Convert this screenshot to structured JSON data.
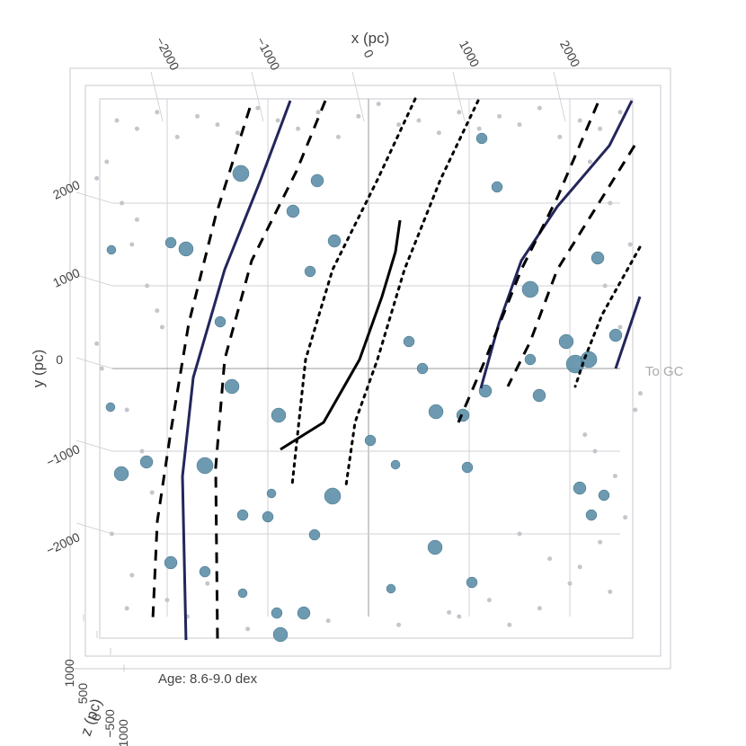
{
  "chart_data": {
    "type": "scatter",
    "x_label": "x (pc)",
    "y_label": "y (pc)",
    "z_label": "z (pc)",
    "annotations": [
      {
        "text": "Age: 8.6-9.0 dex"
      },
      {
        "text": "To GC"
      }
    ],
    "xlim": [
      -2800,
      2800
    ],
    "ylim": [
      -3300,
      3300
    ],
    "zlim": [
      -1200,
      1200
    ],
    "xticks": [
      {
        "value": -2000,
        "label": "−2000"
      },
      {
        "value": -1000,
        "label": "−1000"
      },
      0,
      1000,
      2000
    ],
    "yticks": [
      {
        "value": -2000,
        "label": "−2000"
      },
      {
        "value": -1000,
        "label": "−1000"
      },
      0,
      1000,
      2000
    ],
    "zticks": [
      1000,
      500,
      0,
      {
        "value": -500,
        "label": "−500"
      },
      {
        "value": -1000,
        "label": "−1000"
      }
    ],
    "grid": true,
    "series": [
      {
        "mode": "markers",
        "color": "#c3c6cb",
        "size": 2.5,
        "x": [
          -2500,
          -2300,
          -2100,
          -1900,
          -1700,
          -1500,
          -1300,
          -1100,
          -900,
          -700,
          -500,
          -300,
          -100,
          100,
          300,
          500,
          700,
          900,
          1100,
          1300,
          1500,
          1700,
          1900,
          2100,
          2300,
          2500,
          -2600,
          -2450,
          -2350,
          -2200,
          -2050,
          -2650,
          -2400,
          -2250,
          -2150,
          -2550,
          -2350,
          -2700,
          -2300,
          -2100,
          2200,
          2400,
          2600,
          2350,
          2500,
          2650,
          2250,
          2450,
          2150,
          2550,
          1500,
          1800,
          2000,
          1200,
          1700,
          2100,
          2400,
          900,
          1400,
          2300,
          -2000,
          -1800,
          -1600,
          -2400,
          -1200,
          -400,
          300,
          800,
          -2700,
          2700
        ],
        "y": [
          3000,
          2900,
          3100,
          2800,
          3050,
          2950,
          2850,
          3150,
          3000,
          2900,
          3100,
          2800,
          3050,
          3200,
          2950,
          3000,
          2850,
          3100,
          2900,
          3050,
          2950,
          3150,
          2800,
          3000,
          2900,
          3100,
          2500,
          2000,
          1500,
          1000,
          500,
          0,
          -500,
          -1000,
          -1500,
          -2000,
          -2500,
          2300,
          1800,
          700,
          2500,
          2000,
          1500,
          1000,
          500,
          -500,
          -1000,
          -1300,
          -800,
          -1800,
          -2000,
          -2300,
          -2600,
          -2800,
          -2900,
          -2400,
          -2700,
          -3000,
          -3100,
          -2100,
          -2800,
          -3000,
          -2600,
          -2900,
          -3150,
          -3050,
          -3100,
          -2950,
          300,
          -300
        ]
      },
      {
        "mode": "markers",
        "color": "#5d8fa9",
        "opacity": 0.9,
        "x": [
          -1268,
          -509,
          -2554,
          -1964,
          -1813,
          -750,
          -339,
          -580,
          -1473,
          -893,
          -1357,
          402,
          536,
          670,
          938,
          982,
          1161,
          1277,
          1125,
          1607,
          1964,
          2054,
          2188,
          2277,
          2455,
          2098,
          2214,
          2339,
          1607,
          1696,
          -2455,
          -2205,
          -1964,
          -1625,
          -1625,
          -1250,
          -1000,
          -964,
          -357,
          -536,
          -643,
          -911,
          -875,
          661,
          1027,
          223,
          18,
          268,
          -2563,
          -1250
        ],
        "y": [
          2359,
          2272,
          1435,
          1522,
          1446,
          1902,
          1543,
          1174,
          565,
          -565,
          -217,
          326,
          0,
          -522,
          -565,
          -1196,
          -272,
          2196,
          2783,
          957,
          326,
          54,
          109,
          1337,
          402,
          -1446,
          -1772,
          -1533,
          109,
          -326,
          -1272,
          -1130,
          -2348,
          -1174,
          -2457,
          -1772,
          -1793,
          -1511,
          -1543,
          -2011,
          -2957,
          -2957,
          -3217,
          -2163,
          -2587,
          -2663,
          -870,
          -1163,
          -467,
          -2717
        ],
        "sizes": [
          9,
          7,
          5,
          6,
          8,
          7,
          7,
          6,
          6,
          8,
          8,
          6,
          6,
          8,
          7,
          6,
          7,
          6,
          6,
          9,
          8,
          10,
          9,
          7,
          7,
          7,
          6,
          6,
          6,
          7,
          8,
          7,
          7,
          9,
          6,
          6,
          6,
          5,
          9,
          6,
          7,
          6,
          8,
          8,
          6,
          5,
          6,
          5,
          5,
          5
        ]
      },
      {
        "mode": "lines",
        "color": "#23255a",
        "dash": "solid",
        "width": 3,
        "x": [
          -777,
          -1071,
          -1429,
          -1741,
          -1848,
          -1813
        ],
        "y": [
          3239,
          2283,
          1196,
          -109,
          -1304,
          -3283
        ]
      },
      {
        "mode": "lines",
        "color": "#000000",
        "dash": "dash",
        "width": 3,
        "x": [
          -1179,
          -1518,
          -1786,
          -1964,
          -2098,
          -2143
        ],
        "y": [
          3152,
          1848,
          543,
          -761,
          -1848,
          -3043
        ]
      },
      {
        "mode": "lines",
        "color": "#000000",
        "dash": "dash",
        "width": 3,
        "x": [
          -429,
          -714,
          -1161,
          -1429,
          -1518,
          -1500
        ],
        "y": [
          3239,
          2391,
          1304,
          109,
          -1196,
          -3283
        ]
      },
      {
        "mode": "lines",
        "color": "#000000",
        "dash": "dot",
        "width": 3,
        "x": [
          464,
          89,
          -357,
          -625,
          -759
        ],
        "y": [
          3261,
          2283,
          1196,
          109,
          -1413
        ]
      },
      {
        "mode": "lines",
        "color": "#000000",
        "dash": "dot",
        "width": 3,
        "x": [
          1089,
          714,
          357,
          89,
          -134,
          -223
        ],
        "y": [
          3239,
          2283,
          1196,
          109,
          -652,
          -1413
        ]
      },
      {
        "mode": "lines",
        "color": "#000000",
        "dash": "solid",
        "width": 3,
        "x": [
          -875,
          -446,
          -89,
          134,
          268,
          313
        ],
        "y": [
          -978,
          -652,
          109,
          870,
          1413,
          1793
        ]
      },
      {
        "mode": "lines",
        "color": "#23255a",
        "dash": "solid",
        "width": 3,
        "x": [
          2616,
          2393,
          1875,
          1518,
          1295,
          1116
        ],
        "y": [
          3239,
          2696,
          1957,
          1304,
          543,
          -239
        ]
      },
      {
        "mode": "lines",
        "color": "#000000",
        "dash": "dash",
        "width": 3,
        "x": [
          2277,
          1875,
          1518,
          1161,
          893
        ],
        "y": [
          3207,
          2065,
          1196,
          109,
          -652
        ]
      },
      {
        "mode": "lines",
        "color": "#000000",
        "dash": "dash",
        "width": 3,
        "x": [
          2643,
          2321,
          1875,
          1607,
          1384
        ],
        "y": [
          2696,
          2065,
          1196,
          326,
          -217
        ]
      },
      {
        "mode": "lines",
        "color": "#000000",
        "dash": "dot",
        "width": 3,
        "x": [
          2696,
          2321,
          2143,
          2054
        ],
        "y": [
          1467,
          652,
          109,
          -217
        ]
      },
      {
        "mode": "lines",
        "color": "#23255a",
        "dash": "solid",
        "width": 3,
        "x": [
          2696,
          2455
        ],
        "y": [
          870,
          0
        ]
      }
    ]
  }
}
